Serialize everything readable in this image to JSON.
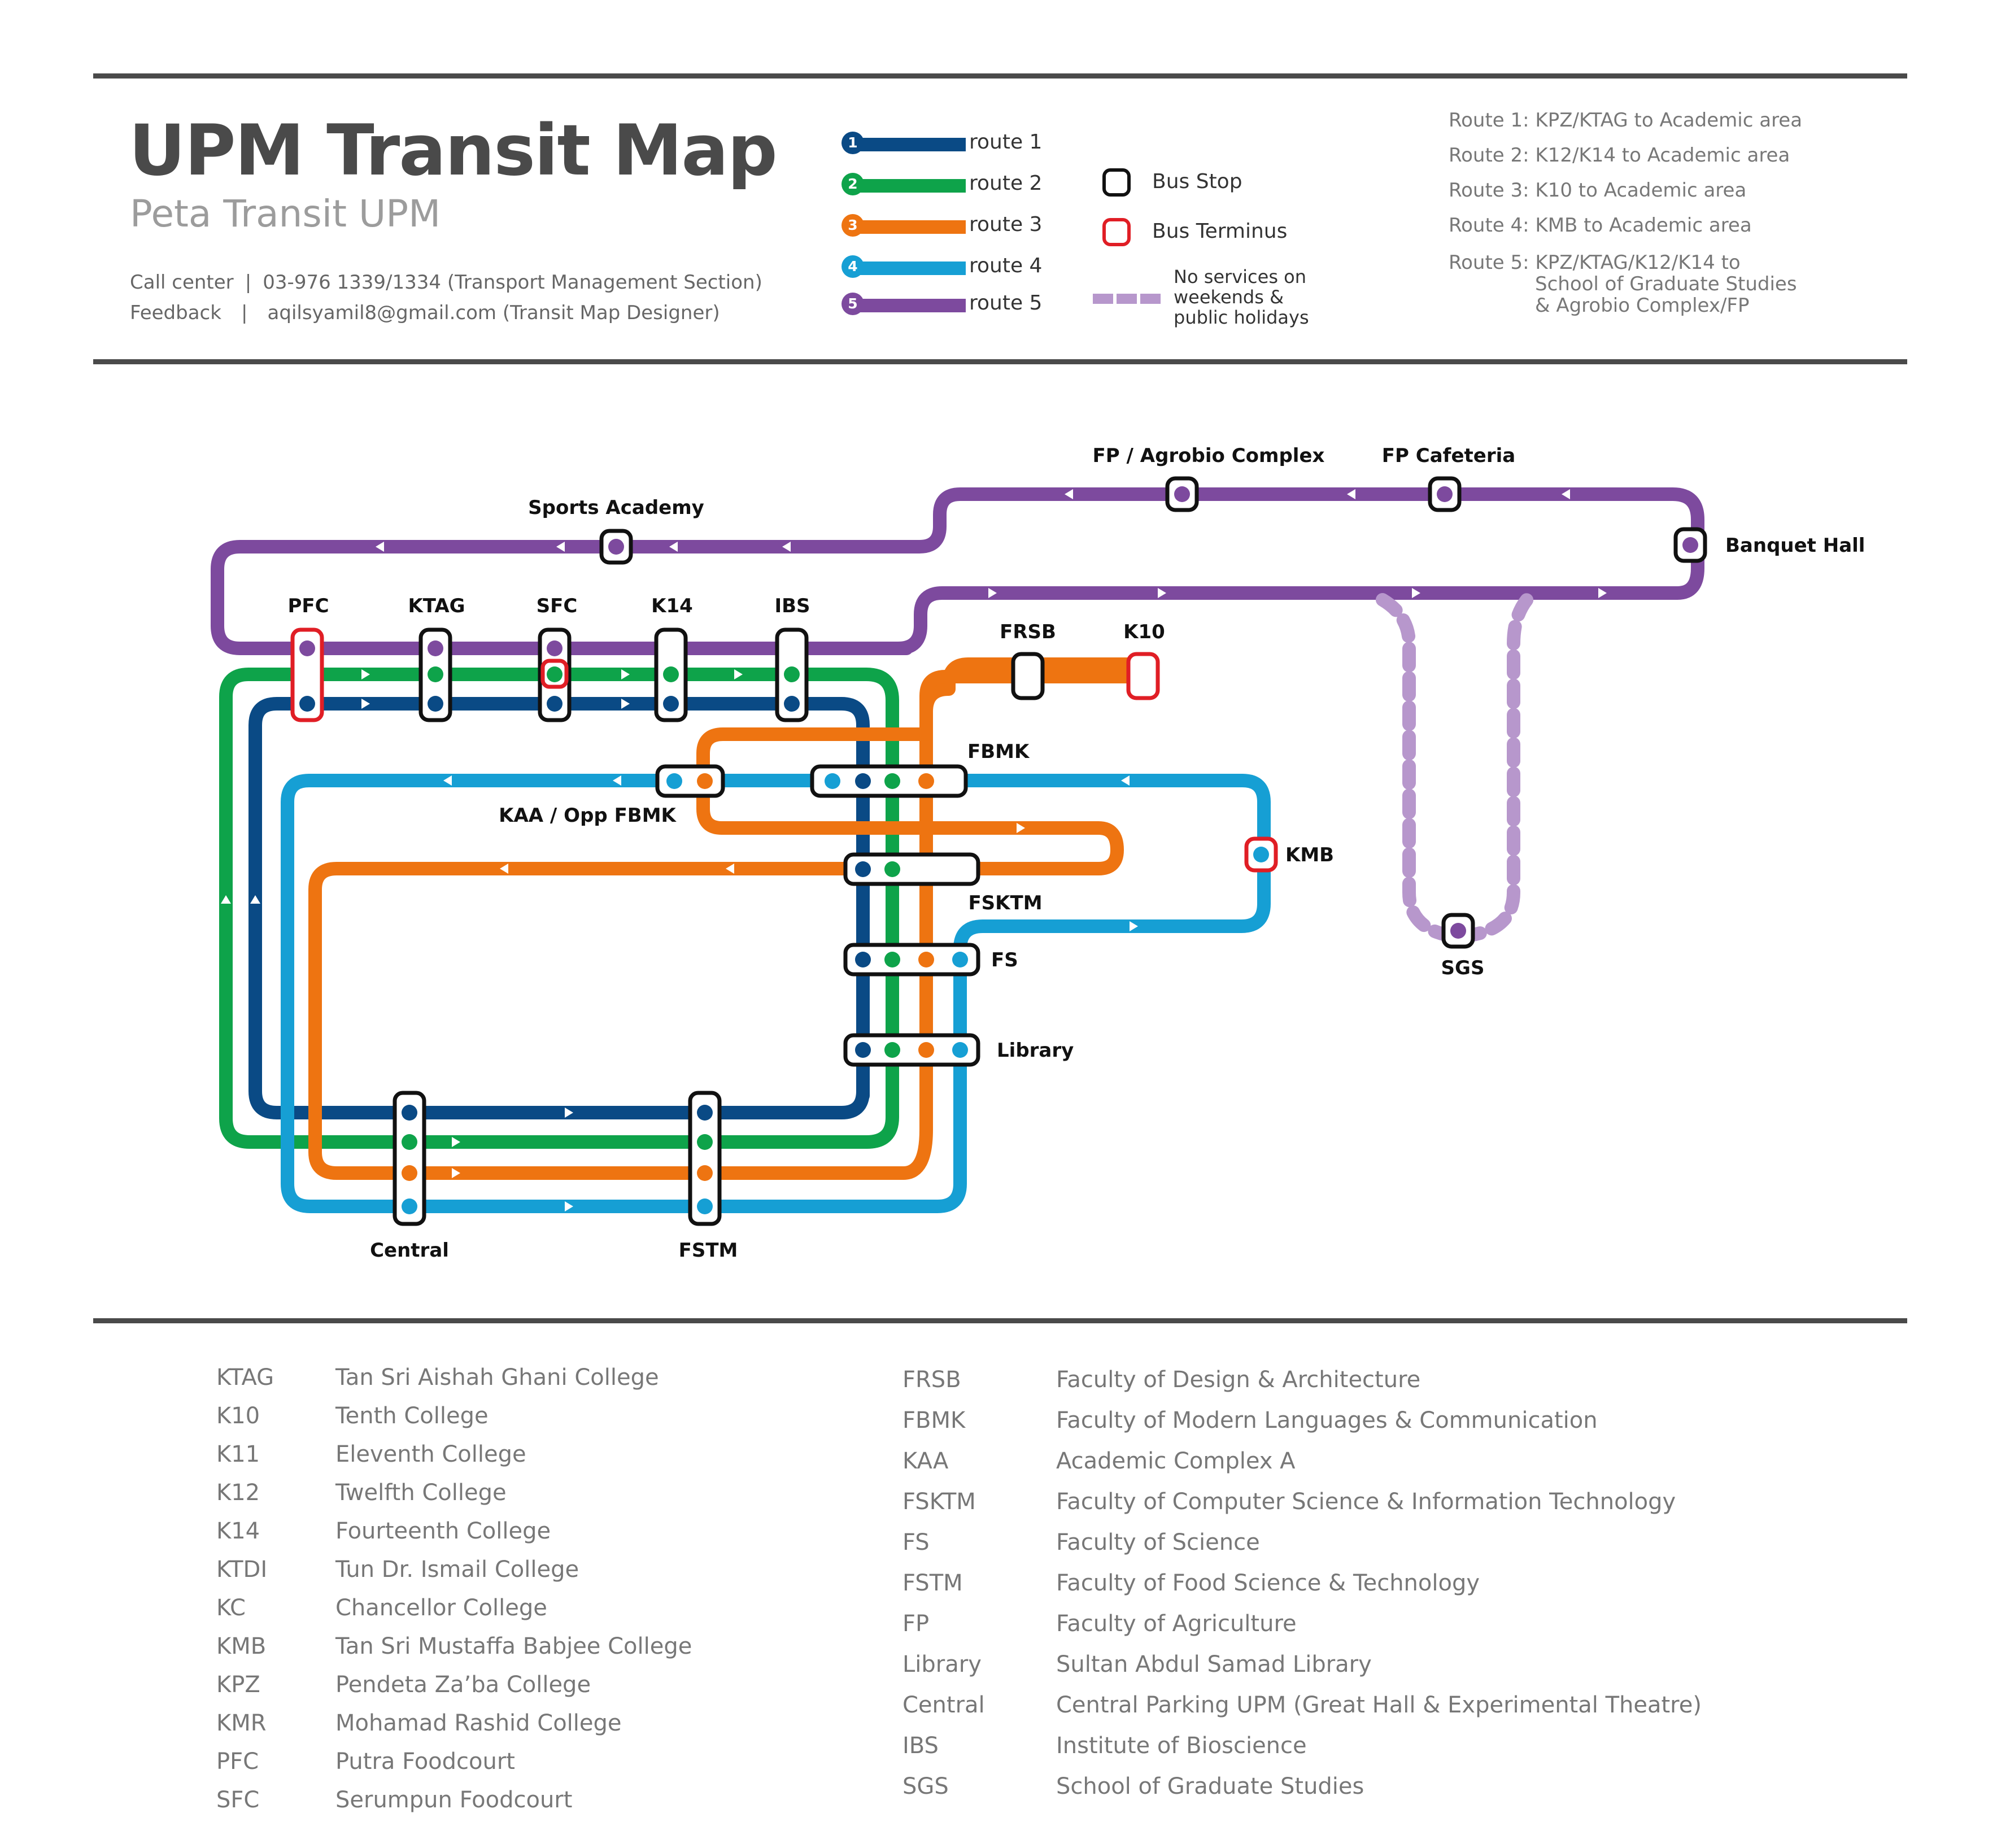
{
  "header": {
    "title": "UPM Transit Map",
    "subtitle": "Peta Transit UPM",
    "call_center_label": "Call center",
    "call_center_value": "03-976 1339/1334 (Transport Management Section)",
    "feedback_label": "Feedback",
    "feedback_value": "aqilsyamil8@gmail.com (Transit Map Designer)",
    "separator": "|"
  },
  "legend": {
    "routes": [
      {
        "number": "1",
        "label": "route 1",
        "color": "#0a4a85"
      },
      {
        "number": "2",
        "label": "route 2",
        "color": "#0ea34a"
      },
      {
        "number": "3",
        "label": "route 3",
        "color": "#ee7411"
      },
      {
        "number": "4",
        "label": "route 4",
        "color": "#169fd4"
      },
      {
        "number": "5",
        "label": "route 5",
        "color": "#7d4a9e"
      }
    ],
    "bus_stop": "Bus Stop",
    "bus_terminus": "Bus Terminus",
    "no_service": "No services on weekends & public holidays",
    "no_service_lines": [
      "No services on",
      "weekends &",
      "public holidays"
    ],
    "no_service_color": "#b797cc",
    "terminus_color": "#e01e25"
  },
  "route_descriptions": [
    "Route 1: KPZ/KTAG to Academic area",
    "Route 2: K12/K14 to Academic area",
    "Route 3: K10 to Academic area",
    "Route 4: KMB to Academic area",
    "Route 5: KPZ/KTAG/K12/K14 to",
    "School of Graduate Studies",
    "& Agrobio Complex/FP"
  ],
  "stations": {
    "sports_academy": "Sports Academy",
    "fp_agrobio": "FP / Agrobio Complex",
    "fp_cafeteria": "FP Cafeteria",
    "banquet_hall": "Banquet Hall",
    "pfc": "PFC",
    "ktag": "KTAG",
    "sfc": "SFC",
    "k14": "K14",
    "ibs": "IBS",
    "frsb": "FRSB",
    "k10": "K10",
    "fbmk": "FBMK",
    "kaa": "KAA / Opp FBMK",
    "kmb": "KMB",
    "fsktm": "FSKTM",
    "fs": "FS",
    "library": "Library",
    "sgs": "SGS",
    "central": "Central",
    "fstm": "FSTM"
  },
  "glossary_left": [
    {
      "abbr": "KTAG",
      "name": "Tan Sri Aishah Ghani College"
    },
    {
      "abbr": "K10",
      "name": "Tenth College"
    },
    {
      "abbr": "K11",
      "name": "Eleventh College"
    },
    {
      "abbr": "K12",
      "name": "Twelfth College"
    },
    {
      "abbr": "K14",
      "name": "Fourteenth College"
    },
    {
      "abbr": "KTDI",
      "name": "Tun Dr. Ismail College"
    },
    {
      "abbr": "KC",
      "name": "Chancellor College"
    },
    {
      "abbr": "KMB",
      "name": "Tan Sri Mustaffa Babjee College"
    },
    {
      "abbr": "KPZ",
      "name": "Pendeta Za’ba College"
    },
    {
      "abbr": "KMR",
      "name": "Mohamad Rashid College"
    },
    {
      "abbr": "PFC",
      "name": "Putra Foodcourt"
    },
    {
      "abbr": "SFC",
      "name": "Serumpun Foodcourt"
    }
  ],
  "glossary_right": [
    {
      "abbr": "FRSB",
      "name": "Faculty of Design & Architecture"
    },
    {
      "abbr": "FBMK",
      "name": "Faculty of Modern Languages & Communication"
    },
    {
      "abbr": "KAA",
      "name": "Academic Complex A"
    },
    {
      "abbr": "FSKTM",
      "name": "Faculty of Computer Science & Information Technology"
    },
    {
      "abbr": "FS",
      "name": "Faculty of Science"
    },
    {
      "abbr": "FSTM",
      "name": "Faculty of Food Science & Technology"
    },
    {
      "abbr": "FP",
      "name": "Faculty of Agriculture"
    },
    {
      "abbr": "Library",
      "name": "Sultan Abdul Samad Library"
    },
    {
      "abbr": "Central",
      "name": "Central Parking UPM (Great Hall & Experimental Theatre)"
    },
    {
      "abbr": "IBS",
      "name": "Institute of Bioscience"
    },
    {
      "abbr": "SGS",
      "name": "School of Graduate Studies"
    }
  ]
}
